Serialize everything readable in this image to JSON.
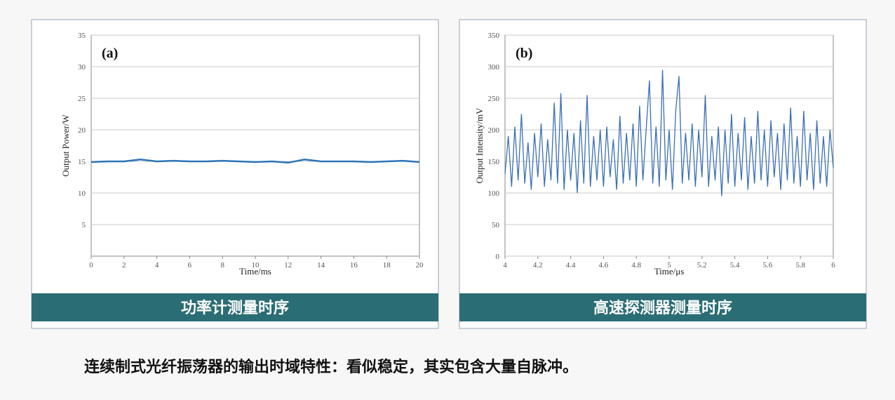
{
  "chart_data": [
    {
      "type": "line",
      "label": "(a)",
      "caption": "功率计测量时序",
      "xlabel": "Time/ms",
      "ylabel": "Output Power/W",
      "xlim": [
        0,
        20
      ],
      "xticks": [
        0,
        2,
        4,
        6,
        8,
        10,
        12,
        14,
        16,
        18,
        20
      ],
      "ylim": [
        0,
        35
      ],
      "yticks": [
        5,
        10,
        15,
        20,
        25,
        30,
        35
      ],
      "grid": true,
      "x": [
        0,
        1,
        2,
        3,
        4,
        5,
        6,
        7,
        8,
        9,
        10,
        11,
        12,
        13,
        14,
        15,
        16,
        17,
        18,
        19,
        20
      ],
      "series": [
        {
          "name": "Output Power",
          "color": "#2e74b5",
          "values": [
            14.9,
            15.0,
            15.0,
            15.3,
            15.0,
            15.1,
            15.0,
            15.0,
            15.1,
            15.0,
            14.9,
            15.0,
            14.8,
            15.3,
            15.0,
            15.0,
            15.0,
            14.9,
            15.0,
            15.1,
            14.9
          ]
        }
      ]
    },
    {
      "type": "line",
      "label": "(b)",
      "caption": "高速探测器测量时序",
      "xlabel": "Time/μs",
      "ylabel": "Output Intensity/mV",
      "xlim": [
        4,
        6
      ],
      "xticks": [
        4,
        4.2,
        4.4,
        4.6,
        4.8,
        5,
        5.2,
        5.4,
        5.6,
        5.8,
        6
      ],
      "ylim": [
        0,
        350
      ],
      "yticks": [
        0,
        50,
        100,
        150,
        200,
        250,
        300,
        350
      ],
      "grid": true,
      "x": [
        4,
        4.02,
        4.04,
        4.06,
        4.08,
        4.1,
        4.12,
        4.14,
        4.16,
        4.18,
        4.2,
        4.22,
        4.24,
        4.26,
        4.28,
        4.3,
        4.32,
        4.34,
        4.36,
        4.38,
        4.4,
        4.42,
        4.44,
        4.46,
        4.48,
        4.5,
        4.52,
        4.54,
        4.56,
        4.58,
        4.6,
        4.62,
        4.64,
        4.66,
        4.68,
        4.7,
        4.72,
        4.74,
        4.76,
        4.78,
        4.8,
        4.82,
        4.84,
        4.86,
        4.88,
        4.9,
        4.92,
        4.94,
        4.96,
        4.98,
        5,
        5.02,
        5.04,
        5.06,
        5.08,
        5.1,
        5.12,
        5.14,
        5.16,
        5.18,
        5.2,
        5.22,
        5.24,
        5.26,
        5.28,
        5.3,
        5.32,
        5.34,
        5.36,
        5.38,
        5.4,
        5.42,
        5.44,
        5.46,
        5.48,
        5.5,
        5.52,
        5.54,
        5.56,
        5.58,
        5.6,
        5.62,
        5.64,
        5.66,
        5.68,
        5.7,
        5.72,
        5.74,
        5.76,
        5.78,
        5.8,
        5.82,
        5.84,
        5.86,
        5.88,
        5.9,
        5.92,
        5.94,
        5.96,
        5.98,
        6
      ],
      "series": [
        {
          "name": "Output Intensity",
          "color": "#3a6fb5",
          "values": [
            130,
            190,
            110,
            205,
            120,
            225,
            115,
            180,
            105,
            195,
            125,
            210,
            110,
            185,
            120,
            243,
            115,
            258,
            105,
            200,
            120,
            195,
            100,
            215,
            115,
            255,
            110,
            190,
            120,
            200,
            110,
            205,
            125,
            185,
            105,
            222,
            115,
            195,
            120,
            210,
            110,
            238,
            120,
            200,
            278,
            115,
            205,
            110,
            295,
            120,
            200,
            105,
            230,
            285,
            115,
            195,
            120,
            210,
            110,
            200,
            125,
            255,
            110,
            190,
            120,
            205,
            95,
            200,
            115,
            225,
            110,
            195,
            120,
            220,
            105,
            190,
            115,
            230,
            120,
            200,
            110,
            215,
            125,
            195,
            105,
            210,
            120,
            235,
            115,
            190,
            110,
            230,
            120,
            195,
            105,
            215,
            115,
            190,
            110,
            200,
            140
          ]
        }
      ]
    }
  ],
  "caption": "连续制式光纤振荡器的输出时域特性：看似稳定，其实包含大量自脉冲。"
}
